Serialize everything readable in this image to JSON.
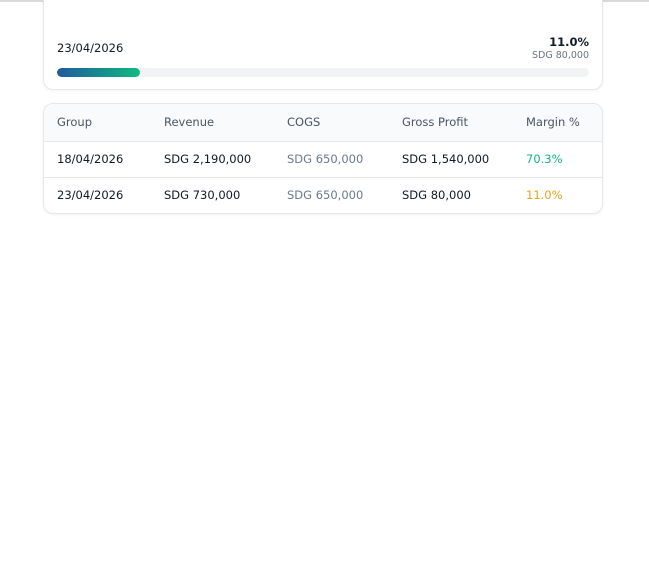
{
  "progress": {
    "label": "23/04/2026",
    "margin": {
      "value": 11.0,
      "label": "11.0%"
    },
    "profit": "SDG 80,000"
  },
  "table": {
    "columns": [
      "Group",
      "Revenue",
      "COGS",
      "Gross Profit",
      "Margin %"
    ],
    "rows": [
      {
        "group": "18/04/2026",
        "revenue": "SDG 2,190,000",
        "cogs": "SDG 650,000",
        "profit": "SDG 1,540,000",
        "margin": {
          "value": 70.3,
          "label": "70.3%"
        },
        "color": "#10b981"
      },
      {
        "group": "23/04/2026",
        "revenue": "SDG 730,000",
        "cogs": "SDG 650,000",
        "profit": "SDG 80,000",
        "margin": {
          "value": 11.0,
          "label": "11.0%"
        },
        "color": "#e6a317"
      }
    ]
  }
}
